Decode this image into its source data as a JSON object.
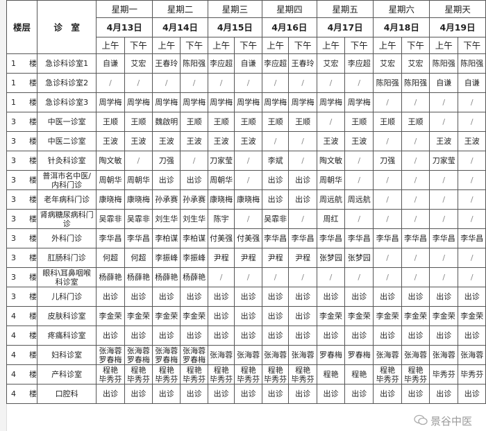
{
  "header": {
    "floor_label": "楼层",
    "clinic_label": "诊　室",
    "days": [
      {
        "weekday": "星期一",
        "date": "4月13日"
      },
      {
        "weekday": "星期二",
        "date": "4月14日"
      },
      {
        "weekday": "星期三",
        "date": "4月15日"
      },
      {
        "weekday": "星期四",
        "date": "4月16日"
      },
      {
        "weekday": "星期五",
        "date": "4月17日"
      },
      {
        "weekday": "星期六",
        "date": "4月18日"
      },
      {
        "weekday": "星期天",
        "date": "4月19日"
      }
    ],
    "am_label": "上午",
    "pm_label": "下午"
  },
  "rows": [
    {
      "floor": "1",
      "floor_unit": "楼",
      "clinic": "急诊科诊室1",
      "cells": [
        "自谦",
        "艾宏",
        "王春玲",
        "陈阳强",
        "李应超",
        "自谦",
        "李应超",
        "王春玲",
        "艾宏",
        "李应超",
        "艾宏",
        "艾宏",
        "陈阳强",
        "陈阳强"
      ]
    },
    {
      "floor": "1",
      "floor_unit": "楼",
      "clinic": "急诊科诊室2",
      "cells": [
        "/",
        "/",
        "/",
        "/",
        "/",
        "/",
        "/",
        "/",
        "/",
        "/",
        "陈阳强",
        "陈阳强",
        "自谦",
        "自谦"
      ]
    },
    {
      "floor": "1",
      "floor_unit": "楼",
      "clinic": "急诊科诊室3",
      "cells": [
        "周学梅",
        "周学梅",
        "周学梅",
        "周学梅",
        "周学梅",
        "周学梅",
        "周学梅",
        "周学梅",
        "周学梅",
        "周学梅",
        "/",
        "/",
        "/",
        "/"
      ]
    },
    {
      "floor": "3",
      "floor_unit": "楼",
      "clinic": "中医一诊室",
      "cells": [
        "王顺",
        "王顺",
        "魏啟明",
        "王顺",
        "王顺",
        "王顺",
        "王顺",
        "王顺",
        "/",
        "王顺",
        "王顺",
        "王顺",
        "/",
        "/"
      ]
    },
    {
      "floor": "3",
      "floor_unit": "楼",
      "clinic": "中医二诊室",
      "cells": [
        "王波",
        "王波",
        "王波",
        "王波",
        "王波",
        "王波",
        "/",
        "/",
        "王波",
        "王波",
        "/",
        "/",
        "王波",
        "王波"
      ]
    },
    {
      "floor": "3",
      "floor_unit": "楼",
      "clinic": "针灸科诊室",
      "cells": [
        "陶文敏",
        "/",
        "刀强",
        "/",
        "刀家莹",
        "/",
        "李斌",
        "/",
        "陶文敏",
        "/",
        "刀强",
        "/",
        "刀家莹",
        "/"
      ]
    },
    {
      "floor": "3",
      "floor_unit": "楼",
      "clinic": "普洱市名中医/内科门诊",
      "cells": [
        "周朝华",
        "周朝华",
        "出诊",
        "出诊",
        "周朝华",
        "/",
        "出诊",
        "出诊",
        "周朝华",
        "/",
        "/",
        "/",
        "/",
        "/"
      ]
    },
    {
      "floor": "3",
      "floor_unit": "楼",
      "clinic": "老年病科门诊",
      "cells": [
        "康晓梅",
        "康晓梅",
        "孙承赛",
        "孙承赛",
        "康晓梅",
        "康晓梅",
        "出诊",
        "出诊",
        "周远航",
        "周远航",
        "/",
        "/",
        "/",
        "/"
      ]
    },
    {
      "floor": "3",
      "floor_unit": "楼",
      "clinic": "肾病糖尿病科门诊",
      "cells": [
        "吴霏非",
        "吴霏非",
        "刘生华",
        "刘生华",
        "陈宇",
        "/",
        "吴霏非",
        "/",
        "周红",
        "/",
        "/",
        "/",
        "/",
        "/"
      ]
    },
    {
      "floor": "3",
      "floor_unit": "楼",
      "clinic": "外科门诊",
      "cells": [
        "李华昌",
        "李华昌",
        "李柏谋",
        "李柏谋",
        "付美强",
        "付美强",
        "李华昌",
        "李华昌",
        "李华昌",
        "李华昌",
        "李华昌",
        "李华昌",
        "李华昌",
        "李华昌"
      ]
    },
    {
      "floor": "3",
      "floor_unit": "楼",
      "clinic": "肛肠科门诊",
      "cells": [
        "何超",
        "何超",
        "李振峰",
        "李振峰",
        "尹程",
        "尹程",
        "尹程",
        "尹程",
        "张梦园",
        "张梦园",
        "/",
        "/",
        "/",
        "/"
      ]
    },
    {
      "floor": "3",
      "floor_unit": "楼",
      "clinic": "眼科\\耳鼻咽喉科诊室",
      "cells": [
        "杨薛艳",
        "杨薛艳",
        "杨薛艳",
        "杨薛艳",
        "/",
        "/",
        "/",
        "/",
        "/",
        "/",
        "/",
        "/",
        "/",
        "/"
      ]
    },
    {
      "floor": "3",
      "floor_unit": "楼",
      "clinic": "儿科门诊",
      "cells": [
        "出诊",
        "出诊",
        "出诊",
        "出诊",
        "出诊",
        "出诊",
        "出诊",
        "出诊",
        "出诊",
        "出诊",
        "出诊",
        "出诊",
        "出诊",
        "出诊"
      ]
    },
    {
      "floor": "4",
      "floor_unit": "楼",
      "clinic": "皮肤科诊室",
      "cells": [
        "李金荣",
        "李金荣",
        "李金荣",
        "李金荣",
        "出诊",
        "出诊",
        "出诊",
        "出诊",
        "李金荣",
        "李金荣",
        "李金荣",
        "李金荣",
        "李金荣",
        "李金荣"
      ]
    },
    {
      "floor": "4",
      "floor_unit": "楼",
      "clinic": "疼痛科诊室",
      "cells": [
        "出诊",
        "出诊",
        "出诊",
        "出诊",
        "出诊",
        "出诊",
        "出诊",
        "出诊",
        "出诊",
        "出诊",
        "出诊",
        "出诊",
        "出诊",
        "出诊"
      ]
    },
    {
      "floor": "4",
      "floor_unit": "楼",
      "clinic": "妇科诊室",
      "cells": [
        "张海蓉 罗春梅",
        "张海蓉 罗春梅",
        "张海蓉 罗春梅",
        "张海蓉 罗春梅",
        "张海蓉",
        "张海蓉",
        "张海蓉",
        "张海蓉",
        "罗春梅",
        "罗春梅",
        "张海蓉",
        "张海蓉",
        "张海蓉",
        "张海蓉"
      ]
    },
    {
      "floor": "4",
      "floor_unit": "楼",
      "clinic": "产科诊室",
      "cells": [
        "程艳 毕秀芬",
        "程艳 毕秀芬",
        "程艳 毕秀芬",
        "程艳 毕秀芬",
        "程艳 毕秀芬",
        "程艳 毕秀芬",
        "程艳 毕秀芬",
        "程艳 毕秀芬",
        "程艳",
        "程艳",
        "程艳 毕秀芬",
        "程艳 毕秀芬",
        "毕秀芬",
        "毕秀芬"
      ]
    },
    {
      "floor": "4",
      "floor_unit": "楼",
      "clinic": "口腔科",
      "cells": [
        "出诊",
        "出诊",
        "出诊",
        "出诊",
        "出诊",
        "出诊",
        "出诊",
        "出诊",
        "出诊",
        "出诊",
        "出诊",
        "出诊",
        "出诊",
        "出诊"
      ]
    }
  ],
  "watermark": {
    "text": "景谷中医",
    "icon": "wechat-icon"
  }
}
